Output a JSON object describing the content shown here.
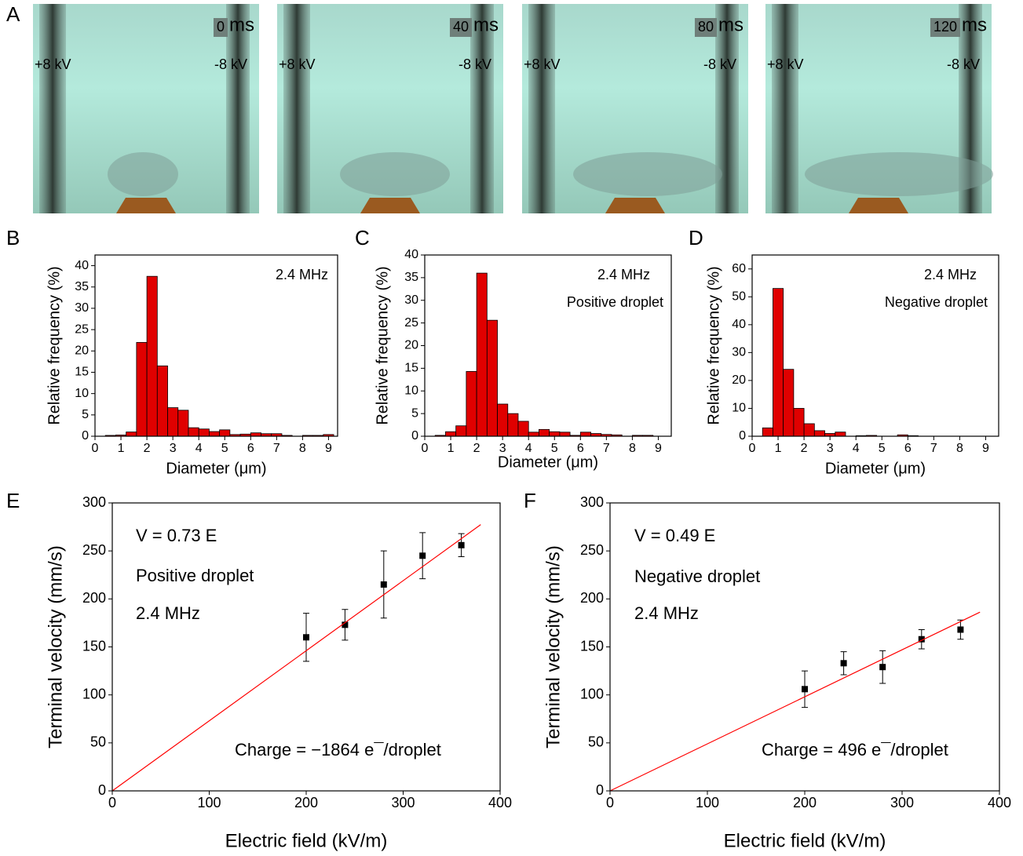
{
  "photos": {
    "panel": "A",
    "frames": [
      {
        "time": "0",
        "unit": "ms",
        "left_voltage": "+8 kV",
        "right_voltage": "-8 kV"
      },
      {
        "time": "40",
        "unit": "ms",
        "left_voltage": "+8 kV",
        "right_voltage": "-8 kV"
      },
      {
        "time": "80",
        "unit": "ms",
        "left_voltage": "+8 kV",
        "right_voltage": "-8 kV"
      },
      {
        "time": "120",
        "unit": "ms",
        "left_voltage": "+8 kV",
        "right_voltage": "-8 kV"
      }
    ]
  },
  "chart_data": [
    {
      "type": "histogram",
      "panel": "B",
      "annotations": [
        "2.4 MHz"
      ],
      "x_label": "Diameter (μm)",
      "y_label": "Relative frequency (%)",
      "color": "#e00000",
      "bins": [
        0.4,
        0.8,
        1.2,
        1.6,
        2.0,
        2.4,
        2.8,
        3.2,
        3.6,
        4.0,
        4.4,
        4.8,
        5.2,
        5.6,
        6.0,
        6.4,
        6.8,
        7.2,
        7.6,
        8.0,
        8.4,
        8.8,
        9.2
      ],
      "values": [
        0.2,
        0.3,
        1.0,
        22,
        37.5,
        16.5,
        6.7,
        6.1,
        2.0,
        1.7,
        1.1,
        1.5,
        0.4,
        0.5,
        0.8,
        0.6,
        0.6,
        0.2,
        0,
        0.2,
        0.2,
        0.4
      ],
      "xlim": [
        0,
        9.35
      ],
      "ylim": [
        0,
        42.5
      ],
      "xticks": [
        0,
        1,
        2,
        3,
        4,
        5,
        6,
        7,
        8,
        9
      ],
      "yticks": [
        0,
        5,
        10,
        15,
        20,
        25,
        30,
        35,
        40
      ]
    },
    {
      "type": "histogram",
      "panel": "C",
      "annotations": [
        "2.4 MHz",
        "Positive droplet"
      ],
      "x_label": "Diameter (μm)",
      "y_label": "Relative frequency (%)",
      "color": "#e00000",
      "bins": [
        0.4,
        0.8,
        1.2,
        1.6,
        2.0,
        2.4,
        2.8,
        3.2,
        3.6,
        4.0,
        4.4,
        4.8,
        5.2,
        5.6,
        6.0,
        6.4,
        6.8,
        7.2,
        7.6,
        8.0,
        8.4,
        8.8,
        9.2
      ],
      "values": [
        0.2,
        1.0,
        2.3,
        14.3,
        36,
        25.6,
        7.1,
        5.0,
        3.3,
        0.9,
        1.5,
        1.0,
        0.9,
        0.2,
        0.9,
        0.6,
        0.4,
        0.3,
        0,
        0.2,
        0.2,
        0
      ],
      "xlim": [
        0,
        9.5
      ],
      "ylim": [
        0,
        40
      ],
      "xticks": [
        0,
        1,
        2,
        3,
        4,
        5,
        6,
        7,
        8,
        9
      ],
      "yticks": [
        0,
        5,
        10,
        15,
        20,
        25,
        30,
        35,
        40
      ]
    },
    {
      "type": "histogram",
      "panel": "D",
      "annotations": [
        "2.4 MHz",
        "Negative droplet"
      ],
      "x_label": "Diameter (μm)",
      "y_label": "Relative frequency (%)",
      "color": "#e00000",
      "bins": [
        0.4,
        0.8,
        1.2,
        1.6,
        2.0,
        2.4,
        2.8,
        3.2,
        3.6,
        4.0,
        4.4,
        4.8,
        5.2,
        5.6,
        6.0,
        6.4,
        6.8,
        7.2,
        7.6,
        8.0,
        8.4,
        8.8,
        9.2
      ],
      "values": [
        3,
        53,
        24,
        10,
        4.5,
        2,
        1,
        1.5,
        0,
        0.2,
        0.3,
        0,
        0,
        0.5,
        0.2,
        0,
        0,
        0,
        0,
        0,
        0,
        0
      ],
      "xlim": [
        0,
        9.5
      ],
      "ylim": [
        0,
        65
      ],
      "xticks": [
        0,
        1,
        2,
        3,
        4,
        5,
        6,
        7,
        8,
        9
      ],
      "yticks": [
        0,
        10,
        20,
        30,
        40,
        50,
        60
      ]
    },
    {
      "type": "scatter",
      "panel": "E",
      "annotations": [
        "V = 0.73 E",
        "Positive droplet",
        "2.4 MHz",
        "Charge = −1864 e¯/droplet"
      ],
      "x_label": "Electric field (kV/m)",
      "y_label": "Terminal velocity (mm/s)",
      "series": [
        {
          "color": "#000000",
          "x": [
            200,
            240,
            280,
            320,
            360
          ],
          "values": [
            160,
            173,
            215,
            245,
            256
          ],
          "errors": [
            25,
            16,
            35,
            24,
            12
          ]
        },
        {
          "type": "line",
          "color": "#ff0000",
          "x": [
            0,
            380
          ],
          "values": [
            0,
            277.4
          ]
        }
      ],
      "xlim": [
        0,
        400
      ],
      "ylim": [
        0,
        300
      ],
      "xticks": [
        0,
        100,
        200,
        300,
        400
      ],
      "yticks": [
        0,
        50,
        100,
        150,
        200,
        250,
        300
      ]
    },
    {
      "type": "scatter",
      "panel": "F",
      "annotations": [
        "V = 0.49 E",
        "Negative droplet",
        "2.4 MHz",
        "Charge = 496 e¯/droplet"
      ],
      "x_label": "Electric field (kV/m)",
      "y_label": "Terminal velocity (mm/s)",
      "series": [
        {
          "color": "#000000",
          "x": [
            200,
            240,
            280,
            320,
            360
          ],
          "values": [
            106,
            133,
            129,
            158,
            168
          ],
          "errors": [
            19,
            12,
            17,
            10,
            10
          ]
        },
        {
          "type": "line",
          "color": "#ff0000",
          "x": [
            0,
            380
          ],
          "values": [
            0,
            186.2
          ]
        }
      ],
      "xlim": [
        0,
        400
      ],
      "ylim": [
        0,
        300
      ],
      "xticks": [
        0,
        100,
        200,
        300,
        400
      ],
      "yticks": [
        0,
        50,
        100,
        150,
        200,
        250,
        300
      ]
    }
  ]
}
